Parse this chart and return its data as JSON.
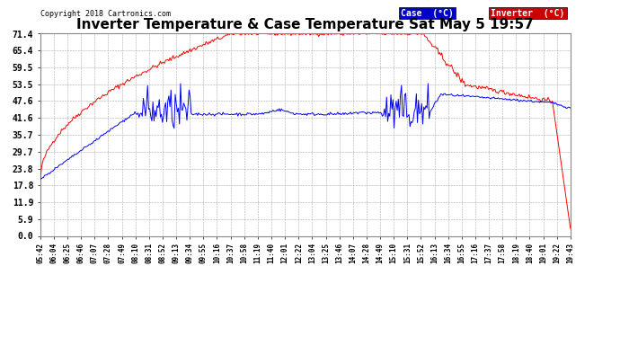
{
  "title": "Inverter Temperature & Case Temperature Sat May 5 19:57",
  "copyright": "Copyright 2018 Cartronics.com",
  "yticks": [
    0.0,
    5.9,
    11.9,
    17.8,
    23.8,
    29.7,
    35.7,
    41.6,
    47.6,
    53.5,
    59.5,
    65.4,
    71.4
  ],
  "xtick_labels": [
    "05:42",
    "06:04",
    "06:25",
    "06:46",
    "07:07",
    "07:28",
    "07:49",
    "08:10",
    "08:31",
    "08:52",
    "09:13",
    "09:34",
    "09:55",
    "10:16",
    "10:37",
    "10:58",
    "11:19",
    "11:40",
    "12:01",
    "12:22",
    "13:04",
    "13:25",
    "13:46",
    "14:07",
    "14:28",
    "14:49",
    "15:10",
    "15:31",
    "15:52",
    "16:13",
    "16:34",
    "16:55",
    "17:16",
    "17:37",
    "17:58",
    "18:19",
    "18:40",
    "19:01",
    "19:22",
    "19:43"
  ],
  "case_color": "#0000ff",
  "inverter_color": "#ff0000",
  "background_color": "#ffffff",
  "grid_color": "#aaaaaa",
  "plot_bg_color": "#ffffff",
  "title_fontsize": 11,
  "ymin": 0.0,
  "ymax": 71.4
}
